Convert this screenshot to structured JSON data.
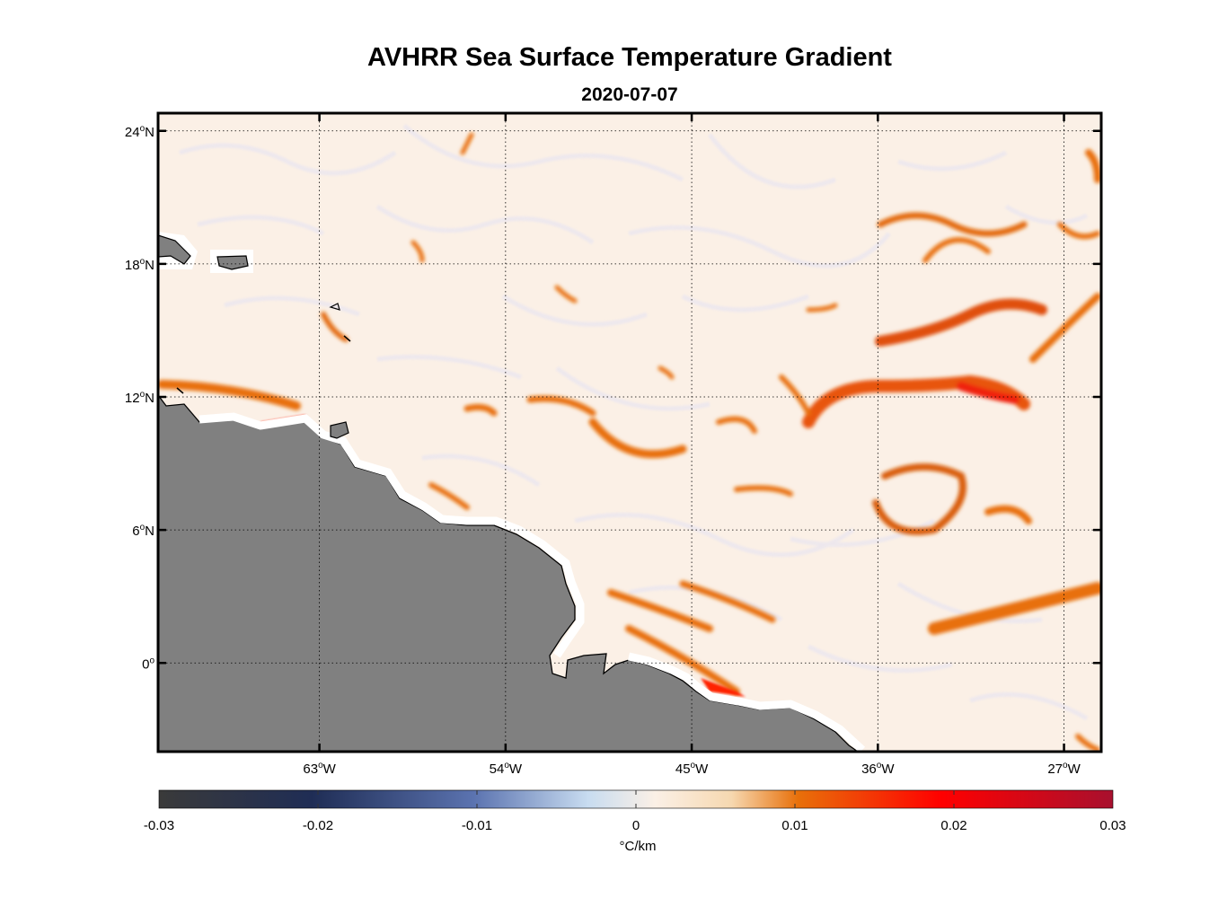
{
  "title": "AVHRR Sea Surface Temperature Gradient",
  "subtitle": "2020-07-07",
  "map": {
    "lon_range": [
      -70.8,
      -25.2
    ],
    "lat_range": [
      -4,
      24.8
    ],
    "lon_ticks": [
      {
        "value": -63,
        "num": "63",
        "hemi": "W"
      },
      {
        "value": -54,
        "num": "54",
        "hemi": "W"
      },
      {
        "value": -45,
        "num": "45",
        "hemi": "W"
      },
      {
        "value": -36,
        "num": "36",
        "hemi": "W"
      },
      {
        "value": -27,
        "num": "27",
        "hemi": "W"
      }
    ],
    "lat_ticks": [
      {
        "value": 24,
        "num": "24",
        "hemi": "N"
      },
      {
        "value": 18,
        "num": "18",
        "hemi": "N"
      },
      {
        "value": 12,
        "num": "12",
        "hemi": "N"
      },
      {
        "value": 6,
        "num": "6",
        "hemi": "N"
      },
      {
        "value": 0,
        "num": "0",
        "hemi": ""
      }
    ],
    "degree_symbol": "o",
    "land_color": "#808080",
    "ocean_base_color": "#fbf0e6",
    "coastline_color": "#000000",
    "gridline_style": "dotted"
  },
  "colorbar": {
    "unit": "°C/km",
    "min": -0.03,
    "max": 0.03,
    "tick_labels": [
      "-0.03",
      "-0.02",
      "-0.01",
      "0",
      "0.01",
      "0.02",
      "0.03"
    ],
    "colors": [
      "#3a3a3a",
      "#1f2d55",
      "#5b73b0",
      "#c8dcf0",
      "#fbf0e6",
      "#e8700a",
      "#ff0000",
      "#a8102e"
    ]
  }
}
